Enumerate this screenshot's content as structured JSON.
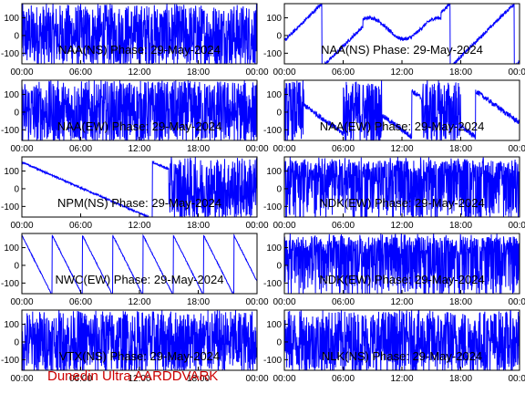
{
  "footer": {
    "text": "Dunedin Ultra AARDDVARK"
  },
  "style": {
    "trace_color": "#0000ff",
    "axis_color": "#000000",
    "footer_color": "#cc0000"
  },
  "chart_data": [
    {
      "type": "line",
      "title": "NAA(NS) Phase: 29-May-2024",
      "ylim": [
        -160,
        180
      ],
      "yticks": [
        -100,
        0,
        100
      ],
      "xlim": [
        0,
        24
      ],
      "xticks": [
        0,
        6,
        12,
        18,
        24
      ],
      "xtick_labels": [
        "00:00",
        "06:00",
        "12:00",
        "18:00",
        "00:00"
      ],
      "pattern": "noise"
    },
    {
      "type": "line",
      "title": "NAA(NS) Phase: 29-May-2024",
      "ylim": [
        -160,
        180
      ],
      "yticks": [
        -100,
        0,
        100
      ],
      "xlim": [
        0,
        24
      ],
      "xticks": [
        0,
        6,
        12,
        18,
        24
      ],
      "xtick_labels": [
        "00:00",
        "06:00",
        "12:00",
        "18:00",
        "00:00"
      ],
      "pattern": "wrap_smooth"
    },
    {
      "type": "line",
      "title": "NAA(EW) Phase: 29-May-2024",
      "ylim": [
        -160,
        180
      ],
      "yticks": [
        -100,
        0,
        100
      ],
      "xlim": [
        0,
        24
      ],
      "xticks": [
        0,
        6,
        12,
        18,
        24
      ],
      "xtick_labels": [
        "00:00",
        "06:00",
        "12:00",
        "18:00",
        "00:00"
      ],
      "pattern": "noise"
    },
    {
      "type": "line",
      "title": "NAA(EW) Phase: 29-May-2024",
      "ylim": [
        -160,
        180
      ],
      "yticks": [
        -100,
        0,
        100
      ],
      "xlim": [
        0,
        24
      ],
      "xticks": [
        0,
        6,
        12,
        18,
        24
      ],
      "xtick_labels": [
        "00:00",
        "06:00",
        "12:00",
        "18:00",
        "00:00"
      ],
      "pattern": "mixed"
    },
    {
      "type": "line",
      "title": "NPM(NS) Phase: 29-May-2024",
      "ylim": [
        -160,
        180
      ],
      "yticks": [
        -100,
        0,
        100
      ],
      "xlim": [
        0,
        24
      ],
      "xticks": [
        0,
        6,
        12,
        18,
        24
      ],
      "xtick_labels": [
        "00:00",
        "06:00",
        "12:00",
        "18:00",
        "00:00"
      ],
      "pattern": "drift_then_noise"
    },
    {
      "type": "line",
      "title": "NDK(EW) Phase: 29-May-2024",
      "ylim": [
        -160,
        180
      ],
      "yticks": [
        -100,
        0,
        100
      ],
      "xlim": [
        0,
        24
      ],
      "xticks": [
        0,
        6,
        12,
        18,
        24
      ],
      "xtick_labels": [
        "00:00",
        "06:00",
        "12:00",
        "18:00",
        "00:00"
      ],
      "pattern": "noise_sparse"
    },
    {
      "type": "line",
      "title": "NWC(EW) Phase: 29-May-2024",
      "ylim": [
        -160,
        180
      ],
      "yticks": [
        -100,
        0,
        100
      ],
      "xlim": [
        0,
        24
      ],
      "xticks": [
        0,
        6,
        12,
        18,
        24
      ],
      "xtick_labels": [
        "00:00",
        "06:00",
        "12:00",
        "18:00",
        "00:00"
      ],
      "pattern": "sawtooth"
    },
    {
      "type": "line",
      "title": "NDK(EW) Phase: 29-May-2024",
      "ylim": [
        -160,
        180
      ],
      "yticks": [
        -100,
        0,
        100
      ],
      "xlim": [
        0,
        24
      ],
      "xticks": [
        0,
        6,
        12,
        18,
        24
      ],
      "xtick_labels": [
        "00:00",
        "06:00",
        "12:00",
        "18:00",
        "00:00"
      ],
      "pattern": "noise_sparse"
    },
    {
      "type": "line",
      "title": "VTX(NS) Phase: 29-May-2024",
      "ylim": [
        -160,
        180
      ],
      "yticks": [
        -100,
        0,
        100
      ],
      "xlim": [
        0,
        24
      ],
      "xticks": [
        0,
        6,
        12,
        18,
        24
      ],
      "xtick_labels": [
        "00:00",
        "06:00",
        "12:00",
        "18:00",
        "00:00"
      ],
      "pattern": "noise"
    },
    {
      "type": "line",
      "title": "NLK(NS) Phase: 29-May-2024",
      "ylim": [
        -160,
        180
      ],
      "yticks": [
        -100,
        0,
        100
      ],
      "xlim": [
        0,
        24
      ],
      "xticks": [
        0,
        6,
        12,
        18,
        24
      ],
      "xtick_labels": [
        "00:00",
        "06:00",
        "12:00",
        "18:00",
        "00:00"
      ],
      "pattern": "dense"
    }
  ]
}
